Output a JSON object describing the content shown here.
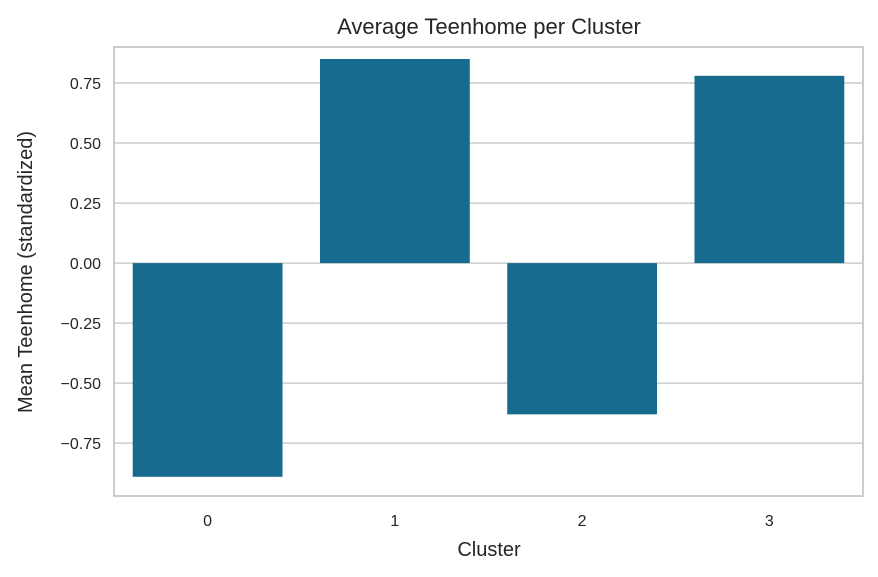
{
  "chart_data": {
    "type": "bar",
    "title": "Average Teenhome per Cluster",
    "xlabel": "Cluster",
    "ylabel": "Mean Teenhome (standardized)",
    "categories": [
      "0",
      "1",
      "2",
      "3"
    ],
    "values": [
      -0.89,
      0.85,
      -0.63,
      0.78
    ],
    "ylim": [
      -0.97,
      0.9
    ],
    "yticks": [
      0.75,
      0.5,
      0.25,
      0.0,
      -0.25,
      -0.5,
      -0.75
    ],
    "ytick_labels": [
      "0.75",
      "0.50",
      "0.25",
      "0.00",
      "−0.25",
      "−0.50",
      "−0.75"
    ],
    "grid": true,
    "legend": "none",
    "colors": {
      "bar": "#176b8f",
      "grid": "#cccccc",
      "frame": "#cccccc",
      "text": "#262626"
    }
  }
}
